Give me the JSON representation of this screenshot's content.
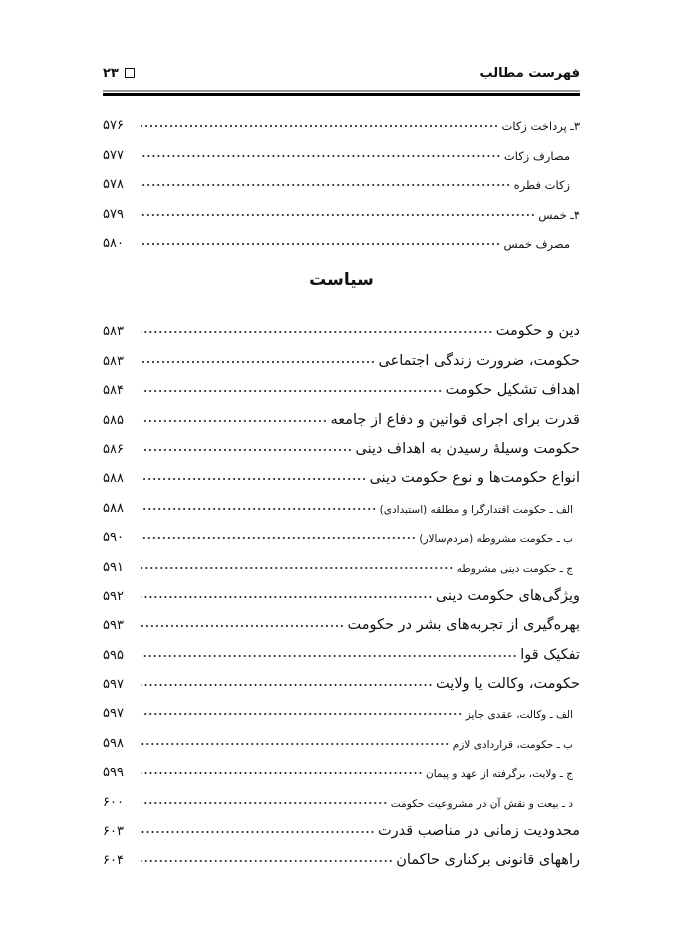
{
  "header": {
    "title": "فهرست مطالب",
    "page_number": "۲۳"
  },
  "group1": [
    {
      "title": "۳ـ پرداخت زکات",
      "page": "۵۷۶",
      "level": "small"
    },
    {
      "title": "مصارف زکات",
      "page": "۵۷۷",
      "level": "indent"
    },
    {
      "title": "زکات فطره",
      "page": "۵۷۸",
      "level": "indent"
    },
    {
      "title": "۴ـ خمس",
      "page": "۵۷۹",
      "level": "small"
    },
    {
      "title": "مصرف خمس",
      "page": "۵۸۰",
      "level": "indent"
    }
  ],
  "section_title": "سیاست",
  "group2": [
    {
      "title": "دین و حکومت",
      "page": "۵۸۳",
      "level": "main"
    },
    {
      "title": "حکومت، ضرورت زندگی اجتماعی",
      "page": "۵۸۳",
      "level": "main"
    },
    {
      "title": "اهداف تشکیل حکومت",
      "page": "۵۸۴",
      "level": "main"
    },
    {
      "title": "قدرت برای اجرای قوانین و دفاع از جامعه",
      "page": "۵۸۵",
      "level": "main"
    },
    {
      "title": "حکومت وسیلهٔ رسیدن به اهداف دینی",
      "page": "۵۸۶",
      "level": "main"
    },
    {
      "title": "انواع حکومت‌ها و نوع حکومت دینی",
      "page": "۵۸۸",
      "level": "main"
    },
    {
      "title": "الف ـ حکومت اقتدارگرا و مطلقه (استبدادی)",
      "page": "۵۸۸",
      "level": "sub"
    },
    {
      "title": "ب ـ حکومت مشروطه (مردم‌سالار)",
      "page": "۵۹۰",
      "level": "sub"
    },
    {
      "title": "ج ـ حکومت دینی مشروطه",
      "page": "۵۹۱",
      "level": "sub"
    },
    {
      "title": "ویژگی‌های حکومت دینی",
      "page": "۵۹۲",
      "level": "main"
    },
    {
      "title": "بهره‌گیری از تجربه‌های بشر در حکومت",
      "page": "۵۹۳",
      "level": "main"
    },
    {
      "title": "تفکیک قوا",
      "page": "۵۹۵",
      "level": "main"
    },
    {
      "title": "حکومت، وکالت یا ولایت",
      "page": "۵۹۷",
      "level": "main"
    },
    {
      "title": "الف ـ وکالت، عقدی جایز",
      "page": "۵۹۷",
      "level": "sub"
    },
    {
      "title": "ب ـ حکومت، قراردادی لازم",
      "page": "۵۹۸",
      "level": "sub"
    },
    {
      "title": "ج ـ ولایت، برگرفته از عهد و پیمان",
      "page": "۵۹۹",
      "level": "sub"
    },
    {
      "title": "د ـ بیعت و نقش آن در مشروعیت حکومت",
      "page": "۶۰۰",
      "level": "sub"
    },
    {
      "title": "محدودیت زمانی در مناصب قدرت",
      "page": "۶۰۳",
      "level": "main"
    },
    {
      "title": "راههای قانونی برکناری حاکمان",
      "page": "۶۰۴",
      "level": "main"
    }
  ]
}
